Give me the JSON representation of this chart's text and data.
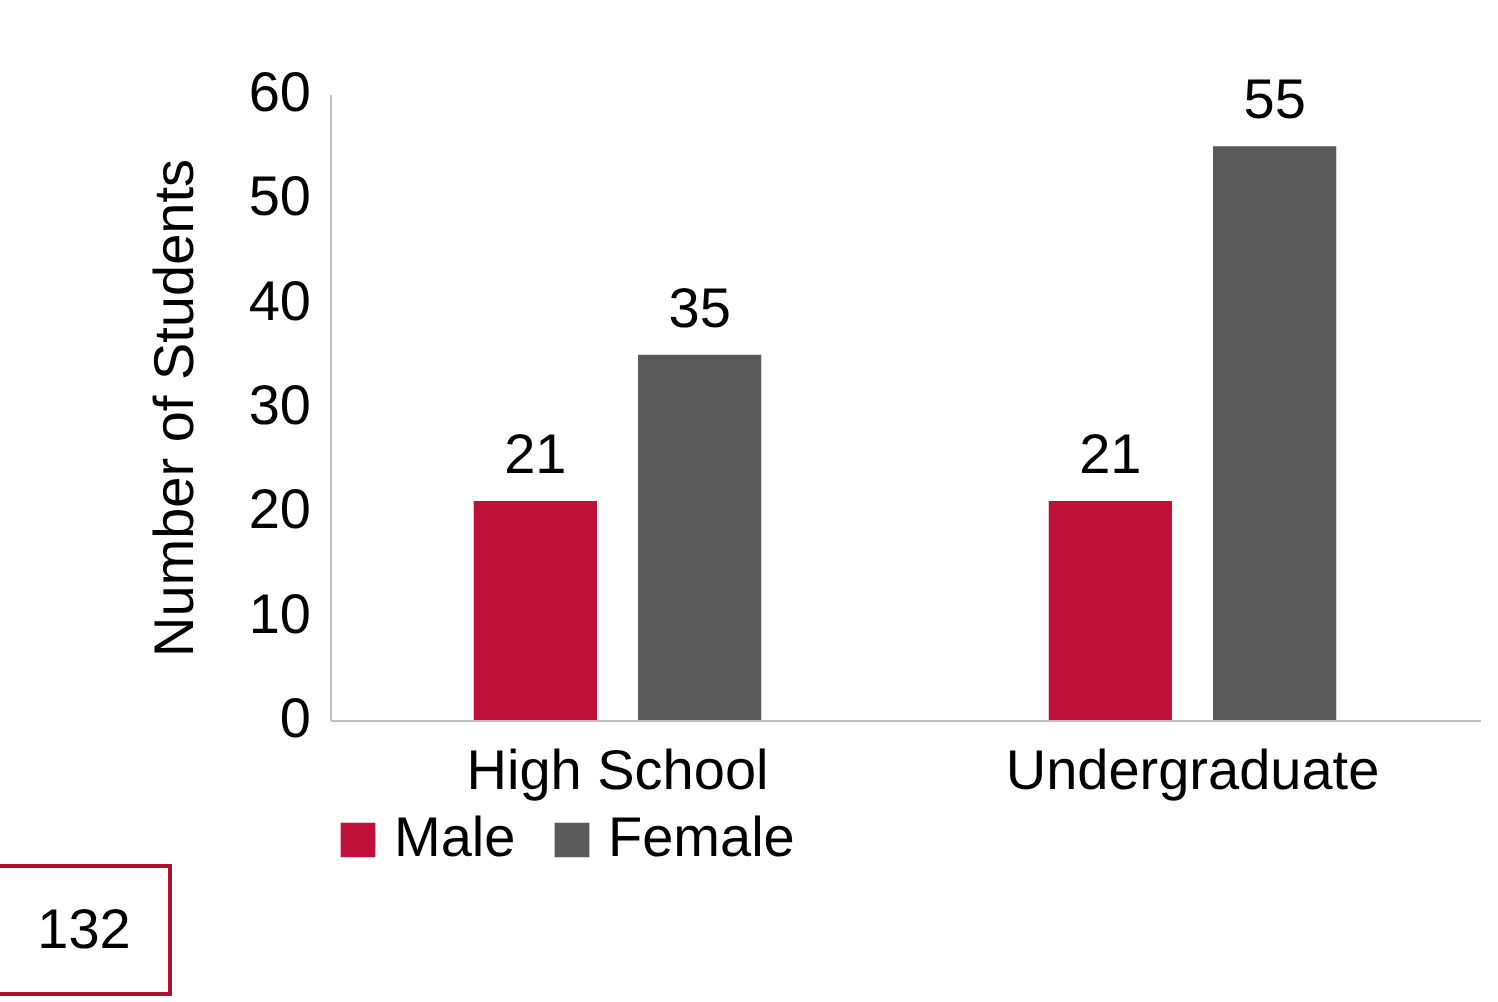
{
  "chart_data": {
    "type": "bar",
    "ylabel": "Number of Students",
    "categories": [
      "High School",
      "Undergraduate"
    ],
    "series": [
      {
        "name": "Male",
        "color": "#be1039",
        "values": [
          21,
          21
        ]
      },
      {
        "name": "Female",
        "color": "#595959",
        "values": [
          35,
          55
        ]
      }
    ],
    "ylim": [
      0,
      60
    ],
    "yticks": [
      0,
      10,
      20,
      30,
      40,
      50,
      60
    ],
    "grid": false,
    "legend": "bottom",
    "data_labels": true,
    "annotations": [
      "132"
    ]
  }
}
